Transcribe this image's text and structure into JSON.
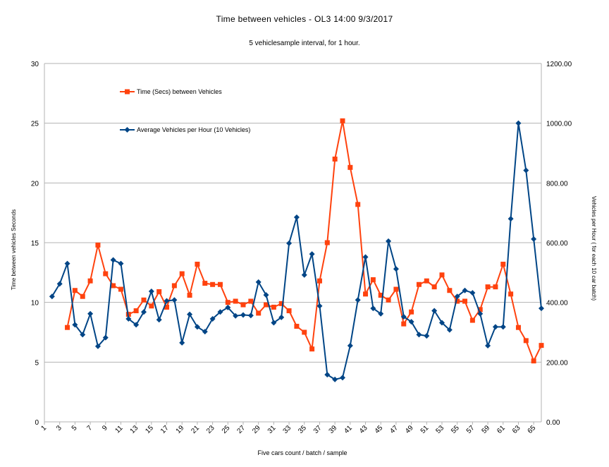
{
  "chart_data": {
    "type": "line",
    "title": "Time between vehicles - OL3   14:00 9/3/2017",
    "subtitle": "5 vehiclesample  interval, for 1 hour.",
    "xlabel": "Five cars count / batch / sample",
    "ylabel_left": "Time between vehicles Seconds",
    "ylabel_right": "Vehicles per Hour ( for each 10 car batch)",
    "y_left_lim": [
      0,
      30
    ],
    "y_left_ticks": [
      "0",
      "5",
      "10",
      "15",
      "20",
      "25",
      "30"
    ],
    "y_right_lim": [
      0,
      1200
    ],
    "y_right_ticks": [
      "0.00",
      "200.00",
      "400.00",
      "600.00",
      "800.00",
      "1000.00",
      "1200.00"
    ],
    "x_range": [
      1,
      66
    ],
    "x_ticks": [
      "1",
      "3",
      "5",
      "7",
      "9",
      "11",
      "13",
      "15",
      "17",
      "19",
      "21",
      "23",
      "25",
      "27",
      "29",
      "31",
      "33",
      "35",
      "37",
      "39",
      "41",
      "43",
      "45",
      "47",
      "49",
      "51",
      "53",
      "55",
      "57",
      "59",
      "61",
      "63",
      "65"
    ],
    "grid": "horizontal",
    "legend_position": "top-left",
    "series": [
      {
        "name": "Time (Secs) between Vehicles",
        "axis": "left",
        "color": "#ff420e",
        "marker": "square",
        "x": [
          4,
          5,
          6,
          7,
          8,
          9,
          10,
          11,
          12,
          13,
          14,
          15,
          16,
          17,
          18,
          19,
          20,
          21,
          22,
          23,
          24,
          25,
          26,
          27,
          28,
          29,
          30,
          31,
          32,
          33,
          34,
          35,
          36,
          37,
          38,
          39,
          40,
          41,
          42,
          43,
          44,
          45,
          46,
          47,
          48,
          49,
          50,
          51,
          52,
          53,
          54,
          55,
          56,
          57,
          58,
          59,
          60,
          61,
          62,
          63,
          64,
          65,
          66
        ],
        "values": [
          7.9,
          11.0,
          10.5,
          11.8,
          14.8,
          12.4,
          11.4,
          11.1,
          9.0,
          9.3,
          10.2,
          9.7,
          10.9,
          9.6,
          11.4,
          12.4,
          10.6,
          13.2,
          11.6,
          11.5,
          11.5,
          10.0,
          10.1,
          9.8,
          10.1,
          9.1,
          9.8,
          9.6,
          9.9,
          9.3,
          8.0,
          7.5,
          6.1,
          11.8,
          15.0,
          22.0,
          25.2,
          21.3,
          18.2,
          10.7,
          11.9,
          10.6,
          10.2,
          11.1,
          8.2,
          9.2,
          11.5,
          11.8,
          11.3,
          12.3,
          11.0,
          10.1,
          10.1,
          8.5,
          9.4,
          11.3,
          11.3,
          13.2,
          10.7,
          7.9,
          6.8,
          5.1,
          6.4
        ]
      },
      {
        "name": "Average Vehicles per Hour (10 Vehicles)",
        "axis": "right",
        "color": "#004586",
        "marker": "diamond",
        "x": [
          2,
          3,
          4,
          5,
          6,
          7,
          8,
          9,
          10,
          11,
          12,
          13,
          14,
          15,
          16,
          17,
          18,
          19,
          20,
          21,
          22,
          23,
          24,
          25,
          26,
          27,
          28,
          29,
          30,
          31,
          32,
          33,
          34,
          35,
          36,
          37,
          38,
          39,
          40,
          41,
          42,
          43,
          44,
          45,
          46,
          47,
          48,
          49,
          50,
          51,
          52,
          53,
          54,
          55,
          56,
          57,
          58,
          59,
          60,
          61,
          62,
          63,
          64,
          65,
          66
        ],
        "values": [
          420,
          462,
          530,
          325,
          292,
          362,
          253,
          282,
          542,
          530,
          345,
          325,
          368,
          437,
          342,
          405,
          408,
          265,
          360,
          318,
          302,
          345,
          368,
          383,
          355,
          358,
          356,
          468,
          425,
          332,
          350,
          598,
          685,
          492,
          562,
          388,
          158,
          142,
          148,
          255,
          408,
          552,
          380,
          362,
          605,
          512,
          352,
          335,
          292,
          288,
          372,
          332,
          308,
          420,
          440,
          432,
          362,
          255,
          318,
          318,
          680,
          1000,
          842,
          612,
          380
        ]
      }
    ]
  }
}
